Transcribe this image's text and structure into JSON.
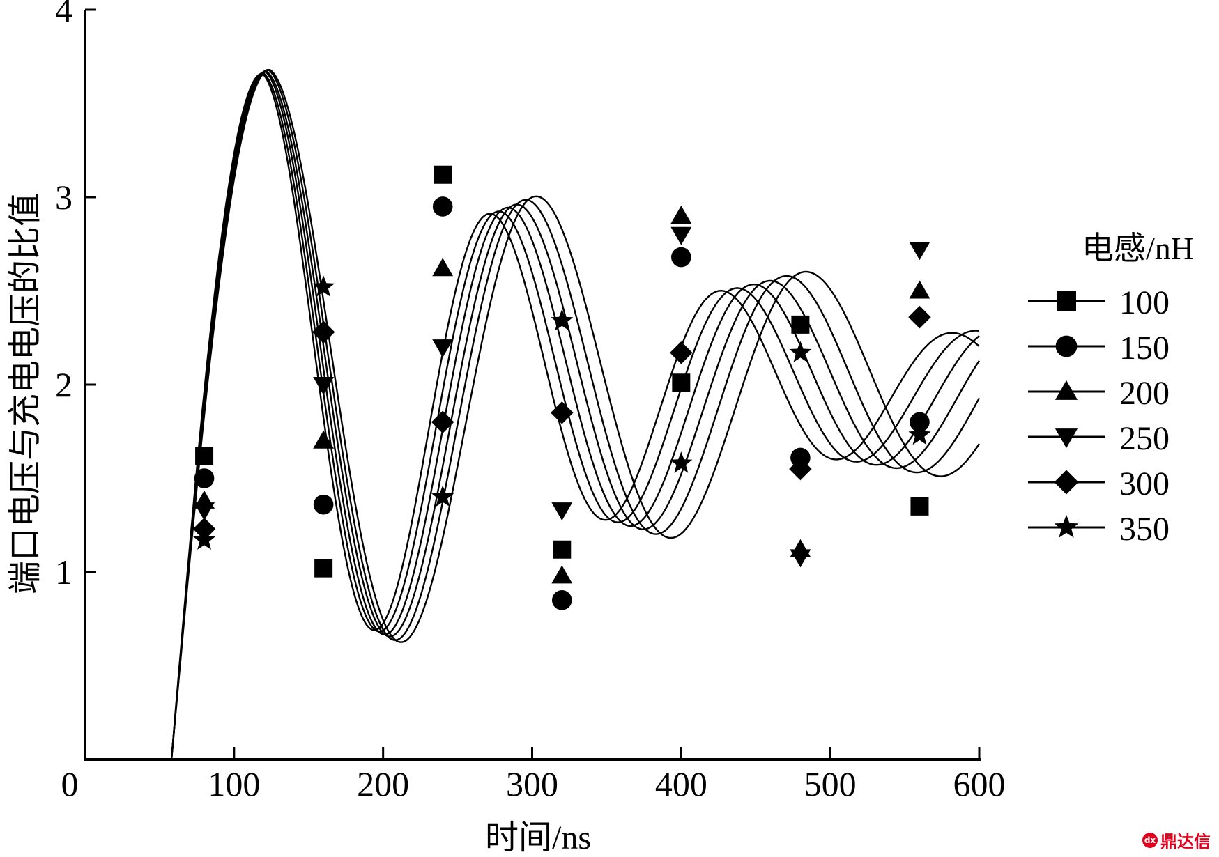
{
  "chart_data": {
    "type": "line",
    "title": "",
    "xlabel": "时间/ns",
    "ylabel": "端口电压与充电电压的比值",
    "xlim": [
      0,
      600
    ],
    "ylim": [
      0,
      4
    ],
    "x_ticks": [
      "0",
      "100",
      "200",
      "300",
      "400",
      "500",
      "600"
    ],
    "y_ticks": [
      "1",
      "2",
      "3",
      "4"
    ],
    "x_tick_values": [
      0,
      100,
      200,
      300,
      400,
      500,
      600
    ],
    "y_tick_values": [
      1,
      2,
      3,
      4
    ],
    "grid": false,
    "legend_title": "电感/nH",
    "legend_position": "right",
    "marker_x": [
      80,
      160,
      240,
      320,
      400,
      480,
      560
    ],
    "series": [
      {
        "name": "100",
        "marker": "square",
        "start": 58,
        "peak_x": 119,
        "peak_y": 3.66,
        "period": 155,
        "decay": 0.0038,
        "shift": 0,
        "points": [
          [
            80,
            1.62
          ],
          [
            160,
            1.02
          ],
          [
            240,
            3.12
          ],
          [
            320,
            1.12
          ],
          [
            400,
            2.01
          ],
          [
            480,
            2.32
          ],
          [
            560,
            1.35
          ]
        ]
      },
      {
        "name": "150",
        "marker": "circle",
        "start": 58,
        "peak_x": 120,
        "peak_y": 3.66,
        "period": 160,
        "decay": 0.0036,
        "shift": 0,
        "points": [
          [
            80,
            1.5
          ],
          [
            160,
            1.36
          ],
          [
            240,
            2.95
          ],
          [
            320,
            0.85
          ],
          [
            400,
            2.68
          ],
          [
            480,
            1.61
          ],
          [
            560,
            1.8
          ]
        ]
      },
      {
        "name": "200",
        "marker": "triangle-up",
        "start": 58,
        "peak_x": 121,
        "peak_y": 3.67,
        "period": 165,
        "decay": 0.0034,
        "shift": 0,
        "points": [
          [
            80,
            1.38
          ],
          [
            160,
            1.7
          ],
          [
            240,
            2.62
          ],
          [
            320,
            0.98
          ],
          [
            400,
            2.9
          ],
          [
            480,
            1.12
          ],
          [
            560,
            2.5
          ]
        ]
      },
      {
        "name": "250",
        "marker": "triangle-down",
        "start": 58,
        "peak_x": 122,
        "peak_y": 3.67,
        "period": 170,
        "decay": 0.0032,
        "shift": 0,
        "points": [
          [
            80,
            1.33
          ],
          [
            160,
            2.0
          ],
          [
            240,
            2.2
          ],
          [
            320,
            1.33
          ],
          [
            400,
            2.8
          ],
          [
            480,
            1.08
          ],
          [
            560,
            2.72
          ]
        ]
      },
      {
        "name": "300",
        "marker": "diamond",
        "start": 58,
        "peak_x": 123,
        "peak_y": 3.68,
        "period": 175,
        "decay": 0.003,
        "shift": 0,
        "points": [
          [
            80,
            1.23
          ],
          [
            160,
            2.28
          ],
          [
            240,
            1.8
          ],
          [
            320,
            1.85
          ],
          [
            400,
            2.17
          ],
          [
            480,
            1.55
          ],
          [
            560,
            2.36
          ]
        ]
      },
      {
        "name": "350",
        "marker": "star",
        "start": 58,
        "peak_x": 124,
        "peak_y": 3.68,
        "period": 181,
        "decay": 0.0028,
        "shift": 0,
        "points": [
          [
            80,
            1.17
          ],
          [
            160,
            2.52
          ],
          [
            240,
            1.4
          ],
          [
            320,
            2.34
          ],
          [
            400,
            1.58
          ],
          [
            480,
            2.17
          ],
          [
            560,
            1.73
          ]
        ]
      }
    ]
  },
  "watermark": {
    "text": "鼎达信",
    "logo": "dx"
  }
}
